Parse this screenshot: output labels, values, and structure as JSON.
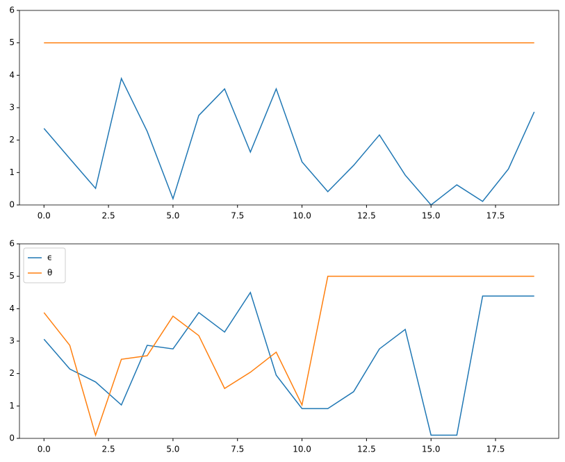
{
  "chart_data": [
    {
      "type": "line",
      "x": [
        0,
        1,
        2,
        3,
        4,
        5,
        6,
        7,
        8,
        9,
        10,
        11,
        12,
        13,
        14,
        15,
        16,
        17,
        18,
        19
      ],
      "series": [
        {
          "color": "#1f77b4",
          "values": [
            2.36,
            1.43,
            0.51,
            3.9,
            2.27,
            0.19,
            2.76,
            3.58,
            1.63,
            3.58,
            1.33,
            0.41,
            1.22,
            2.16,
            0.92,
            0,
            0.62,
            0.11,
            1.11,
            2.87
          ]
        },
        {
          "color": "#ff7f0e",
          "values": [
            5,
            5,
            5,
            5,
            5,
            5,
            5,
            5,
            5,
            5,
            5,
            5,
            5,
            5,
            5,
            5,
            5,
            5,
            5,
            5
          ]
        }
      ],
      "xlim": [
        -0.95,
        19.95
      ],
      "xticks": [
        {
          "value": 0,
          "label": "0.0"
        },
        2.5,
        {
          "value": 5,
          "label": "5.0"
        },
        7.5,
        {
          "value": 10,
          "label": "10.0"
        },
        12.5,
        {
          "value": 15,
          "label": "15.0"
        },
        17.5
      ],
      "ylim": [
        0,
        6
      ],
      "yticks": [
        0,
        1,
        2,
        3,
        4,
        5,
        6
      ]
    },
    {
      "type": "line",
      "x": [
        0,
        1,
        2,
        3,
        4,
        5,
        6,
        7,
        8,
        9,
        10,
        11,
        12,
        13,
        14,
        15,
        16,
        17,
        18,
        19
      ],
      "series": [
        {
          "name": "ϵ",
          "color": "#1f77b4",
          "values": [
            3.06,
            2.14,
            1.74,
            1.03,
            2.87,
            2.76,
            3.88,
            3.28,
            4.5,
            1.95,
            0.92,
            0.92,
            1.44,
            2.76,
            3.36,
            0.1,
            0.1,
            4.39,
            4.39,
            4.39
          ]
        },
        {
          "name": "θ",
          "color": "#ff7f0e",
          "values": [
            3.88,
            2.87,
            0.1,
            2.44,
            2.55,
            3.77,
            3.17,
            1.54,
            2.04,
            2.66,
            1.03,
            5,
            5,
            5,
            5,
            5,
            5,
            5,
            5,
            5
          ]
        }
      ],
      "xlim": [
        -0.95,
        19.95
      ],
      "xticks": [
        {
          "value": 0,
          "label": "0.0"
        },
        2.5,
        {
          "value": 5,
          "label": "5.0"
        },
        7.5,
        {
          "value": 10,
          "label": "10.0"
        },
        12.5,
        {
          "value": 15,
          "label": "15.0"
        },
        17.5
      ],
      "ylim": [
        0,
        6
      ],
      "yticks": [
        0,
        1,
        2,
        3,
        4,
        5,
        6
      ],
      "legend": "upper left"
    }
  ]
}
